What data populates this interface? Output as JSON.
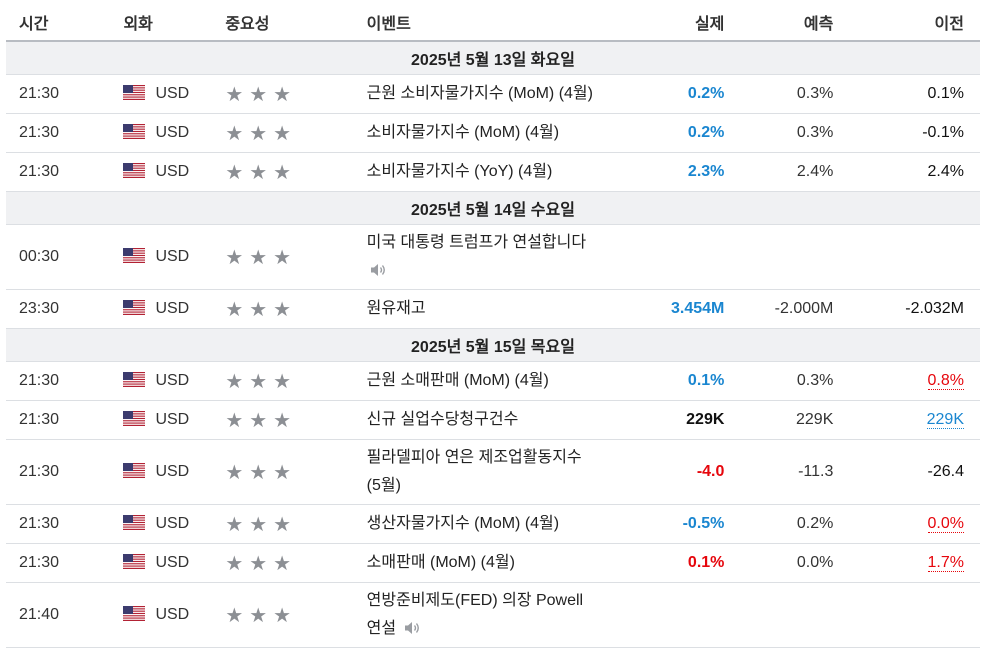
{
  "headers": {
    "time": "시간",
    "currency": "외화",
    "importance": "중요성",
    "event": "이벤트",
    "actual": "실제",
    "forecast": "예측",
    "previous": "이전"
  },
  "colors": {
    "actual_better": "#1a86d0",
    "actual_worse": "#e6060c",
    "date_row_bg": "#f0f1f3",
    "star": "#8c8f94"
  },
  "groups": [
    {
      "date": "2025년 5월 13일 화요일",
      "rows": [
        {
          "time": "21:30",
          "currency": "USD",
          "stars": "★★★",
          "event": "근원 소비자물가지수 (MoM) (4월)",
          "actual": "0.2%",
          "forecast": "0.3%",
          "previous": "0.1%"
        },
        {
          "time": "21:30",
          "currency": "USD",
          "stars": "★★★",
          "event": "소비자물가지수 (MoM) (4월)",
          "actual": "0.2%",
          "forecast": "0.3%",
          "previous": "-0.1%"
        },
        {
          "time": "21:30",
          "currency": "USD",
          "stars": "★★★",
          "event": "소비자물가지수 (YoY) (4월)",
          "actual": "2.3%",
          "forecast": "2.4%",
          "previous": "2.4%"
        }
      ]
    },
    {
      "date": "2025년 5월 14일 수요일",
      "rows": [
        {
          "time": "00:30",
          "currency": "USD",
          "stars": "★★★",
          "event": "미국 대통령 트럼프가 연설합니다",
          "speech_icon": "speaker-icon",
          "actual": "",
          "forecast": "",
          "previous": ""
        },
        {
          "time": "23:30",
          "currency": "USD",
          "stars": "★★★",
          "event": "원유재고",
          "actual": "3.454M",
          "forecast": "-2.000M",
          "previous": "-2.032M"
        }
      ]
    },
    {
      "date": "2025년 5월 15일 목요일",
      "rows": [
        {
          "time": "21:30",
          "currency": "USD",
          "stars": "★★★",
          "event": "근원 소매판매 (MoM) (4월)",
          "actual": "0.1%",
          "forecast": "0.3%",
          "previous": "0.8%"
        },
        {
          "time": "21:30",
          "currency": "USD",
          "stars": "★★★",
          "event": "신규 실업수당청구건수",
          "actual": "229K",
          "forecast": "229K",
          "previous": "229K"
        },
        {
          "time": "21:30",
          "currency": "USD",
          "stars": "★★★",
          "event_line1": "필라델피아 연은 제조업활동지수",
          "event_line2": "(5월)",
          "actual": "-4.0",
          "forecast": "-11.3",
          "previous": "-26.4"
        },
        {
          "time": "21:30",
          "currency": "USD",
          "stars": "★★★",
          "event": "생산자물가지수 (MoM) (4월)",
          "actual": "-0.5%",
          "forecast": "0.2%",
          "previous": "0.0%"
        },
        {
          "time": "21:30",
          "currency": "USD",
          "stars": "★★★",
          "event": "소매판매 (MoM) (4월)",
          "actual": "0.1%",
          "forecast": "0.0%",
          "previous": "1.7%"
        },
        {
          "time": "21:40",
          "currency": "USD",
          "stars": "★★★",
          "event_line1": "연방준비제도(FED) 의장 Powell",
          "event_line2": "연설",
          "speech_icon": "speaker-icon",
          "actual": "",
          "forecast": "",
          "previous": ""
        }
      ]
    }
  ]
}
